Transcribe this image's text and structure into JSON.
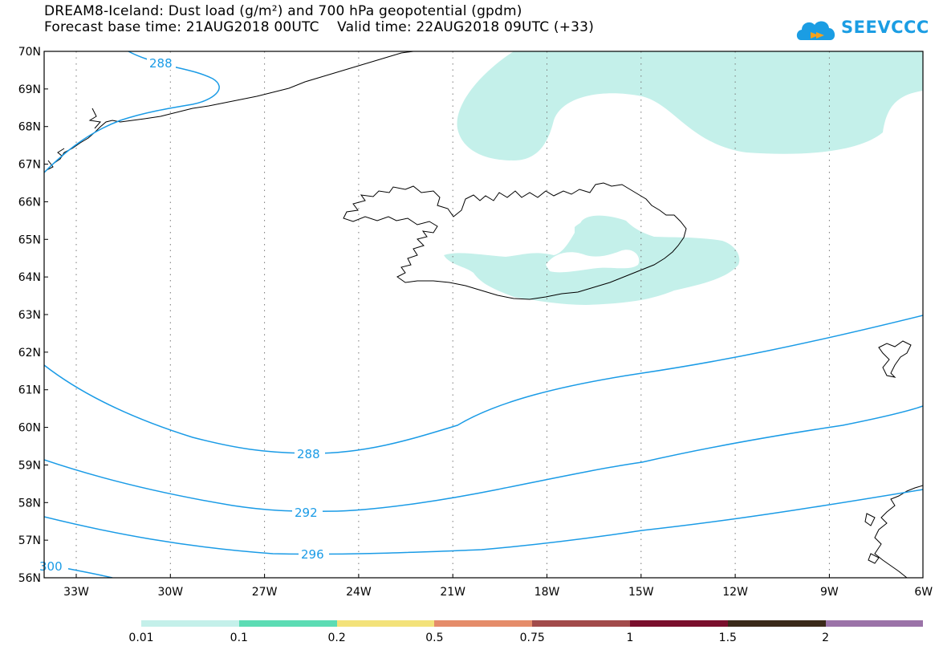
{
  "header": {
    "title_line1": "DREAM8-Iceland: Dust load (g/m²) and 700 hPa geopotential (gpdm)",
    "title_line2": "Forecast base time: 21AUG2018 00UTC    Valid time: 22AUG2018 09UTC (+33)",
    "logo_text": "SEEVCCC"
  },
  "map": {
    "lat_labels": [
      "70N",
      "69N",
      "68N",
      "67N",
      "66N",
      "65N",
      "64N",
      "63N",
      "62N",
      "61N",
      "60N",
      "59N",
      "58N",
      "57N",
      "56N"
    ],
    "lon_labels": [
      "33W",
      "30W",
      "27W",
      "24W",
      "21W",
      "18W",
      "15W",
      "12W",
      "9W",
      "6W"
    ],
    "contour_labels": [
      "288",
      "288",
      "292",
      "296",
      "300"
    ],
    "contour_color": "#1a9be6",
    "dust_color": "#c4f0ea"
  },
  "colorbar": {
    "labels": [
      "0.01",
      "0.1",
      "0.2",
      "0.5",
      "0.75",
      "1",
      "1.5",
      "2"
    ],
    "colors": [
      "#c4f0ea",
      "#5cdcb4",
      "#f3e27a",
      "#e58c6a",
      "#a24b4b",
      "#7a0f2d",
      "#3b2a1a",
      "#9b73a8"
    ]
  }
}
